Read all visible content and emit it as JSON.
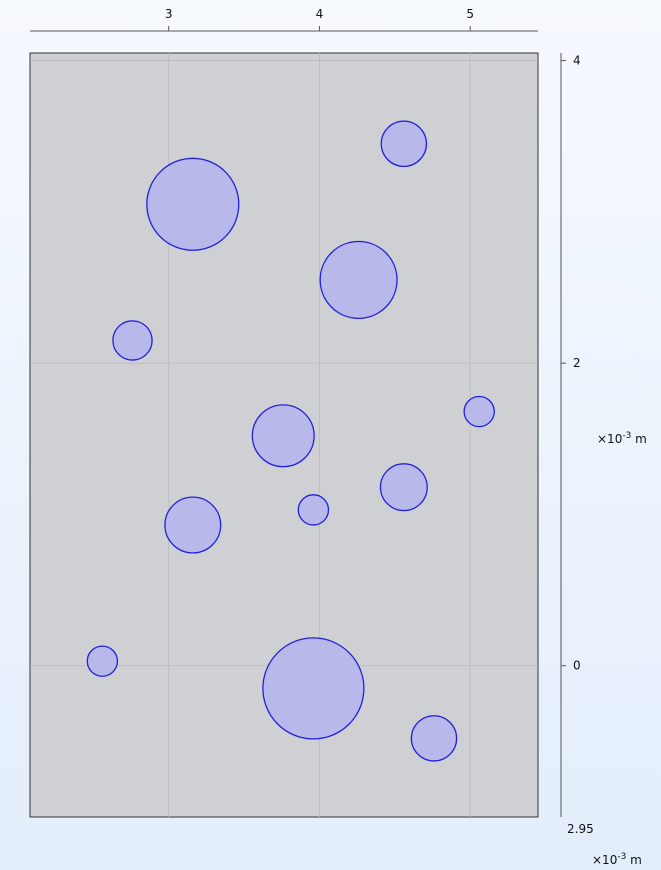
{
  "x_axis": {
    "ticks": [
      {
        "value": 3,
        "label": "3"
      },
      {
        "value": 4,
        "label": "4"
      },
      {
        "value": 5,
        "label": "5"
      }
    ],
    "range": [
      2.08,
      5.45
    ]
  },
  "y_axis": {
    "ticks": [
      {
        "value": 4,
        "label": "4"
      },
      {
        "value": 2,
        "label": "2"
      },
      {
        "value": 0,
        "label": "0"
      }
    ],
    "range": [
      -1.0,
      4.05
    ]
  },
  "extra_label": "2.95",
  "unit": {
    "prefix": "×10",
    "exponent": "-3",
    "suffix": " m"
  },
  "colors": {
    "domain_fill": "#cfd0d3",
    "circle_fill": "#b8b8eb",
    "circle_stroke": "#2121dd",
    "grid": "#b9babd",
    "axis": "#555555"
  },
  "circles": [
    {
      "x": 4.56,
      "y": 3.45,
      "r": 0.15
    },
    {
      "x": 3.16,
      "y": 3.05,
      "r": 0.305
    },
    {
      "x": 4.26,
      "y": 2.55,
      "r": 0.255
    },
    {
      "x": 2.76,
      "y": 2.15,
      "r": 0.13
    },
    {
      "x": 5.06,
      "y": 1.68,
      "r": 0.1
    },
    {
      "x": 3.76,
      "y": 1.52,
      "r": 0.205
    },
    {
      "x": 4.56,
      "y": 1.18,
      "r": 0.155
    },
    {
      "x": 3.96,
      "y": 1.03,
      "r": 0.1
    },
    {
      "x": 3.16,
      "y": 0.93,
      "r": 0.185
    },
    {
      "x": 2.56,
      "y": 0.03,
      "r": 0.1
    },
    {
      "x": 3.96,
      "y": -0.15,
      "r": 0.335
    },
    {
      "x": 4.76,
      "y": -0.48,
      "r": 0.15
    }
  ]
}
